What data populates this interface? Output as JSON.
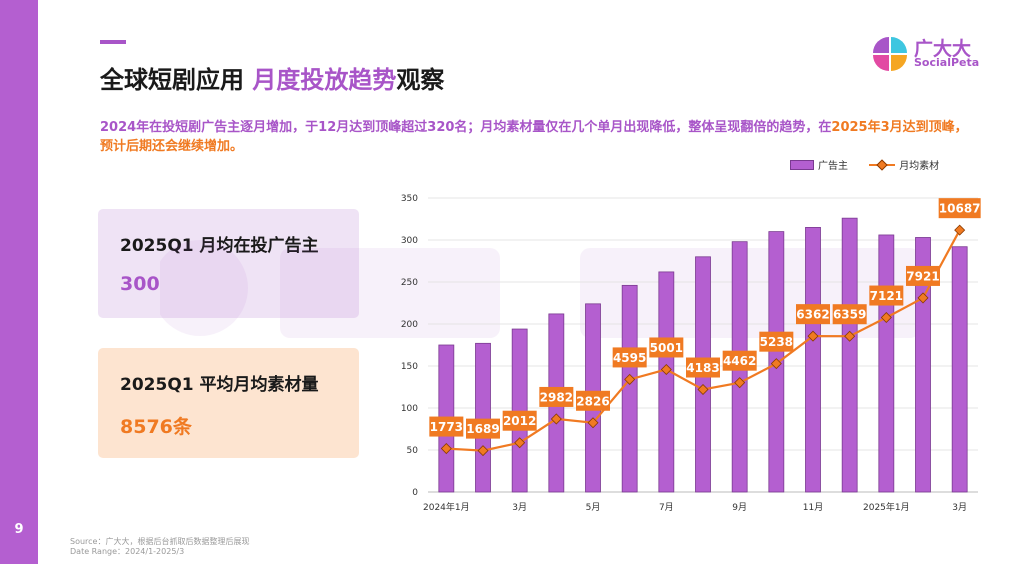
{
  "page": {
    "number": "9"
  },
  "title": {
    "part1": "全球短剧应用",
    "highlight": "月度投放趋势",
    "part2": "观察"
  },
  "logo": {
    "cn": "广大大",
    "en": "SocialPeta",
    "icon": "socialpeta-logo-icon",
    "colors": [
      "#f5a623",
      "#3ec6e0",
      "#e24aa3",
      "#a855c8"
    ]
  },
  "subtitle": {
    "purple": "2024年在投短剧广告主逐月增加，于12月达到顶峰超过320名；月均素材量仅在几个单月出现降低，整体呈现翻倍的趋势，在",
    "orange": "2025年3月达到顶峰，预计后期还会继续增加。"
  },
  "cards": [
    {
      "label": "2025Q1  月均在投广告主",
      "value": "300"
    },
    {
      "label": "2025Q1  平均月均素材量",
      "value": "8576条"
    }
  ],
  "source": {
    "line1": "Source：广大大，根据后台抓取后数据整理后展现",
    "line2": "Date Range：2024/1-2025/3"
  },
  "colors": {
    "accent": "#a855c8",
    "bar": "#b45fd0",
    "line": "#f07a22",
    "sidebar": "#b45fd0"
  },
  "chart_data": {
    "type": "bar",
    "categories": [
      "2024年1月",
      "2月",
      "3月",
      "4月",
      "5月",
      "6月",
      "7月",
      "8月",
      "9月",
      "10月",
      "11月",
      "12月",
      "2025年1月",
      "2月",
      "3月"
    ],
    "tick_labels": [
      "2024年1月",
      "",
      "3月",
      "",
      "5月",
      "",
      "7月",
      "",
      "9月",
      "",
      "11月",
      "",
      "2025年1月",
      "",
      "3月"
    ],
    "series": [
      {
        "name": "广告主",
        "type": "bar",
        "axis": "left",
        "values": [
          175,
          177,
          194,
          212,
          224,
          246,
          262,
          280,
          298,
          310,
          315,
          326,
          306,
          303,
          292
        ]
      },
      {
        "name": "月均素材",
        "type": "line",
        "axis": "right",
        "values": [
          1773,
          1689,
          2012,
          2982,
          2826,
          4595,
          5001,
          4183,
          4462,
          5238,
          6362,
          6359,
          7121,
          7921,
          10687
        ]
      }
    ],
    "ylim": [
      0,
      350
    ],
    "yticks": [
      0,
      50,
      100,
      150,
      200,
      250,
      300,
      350
    ],
    "grid": true,
    "legend": "top-right"
  }
}
